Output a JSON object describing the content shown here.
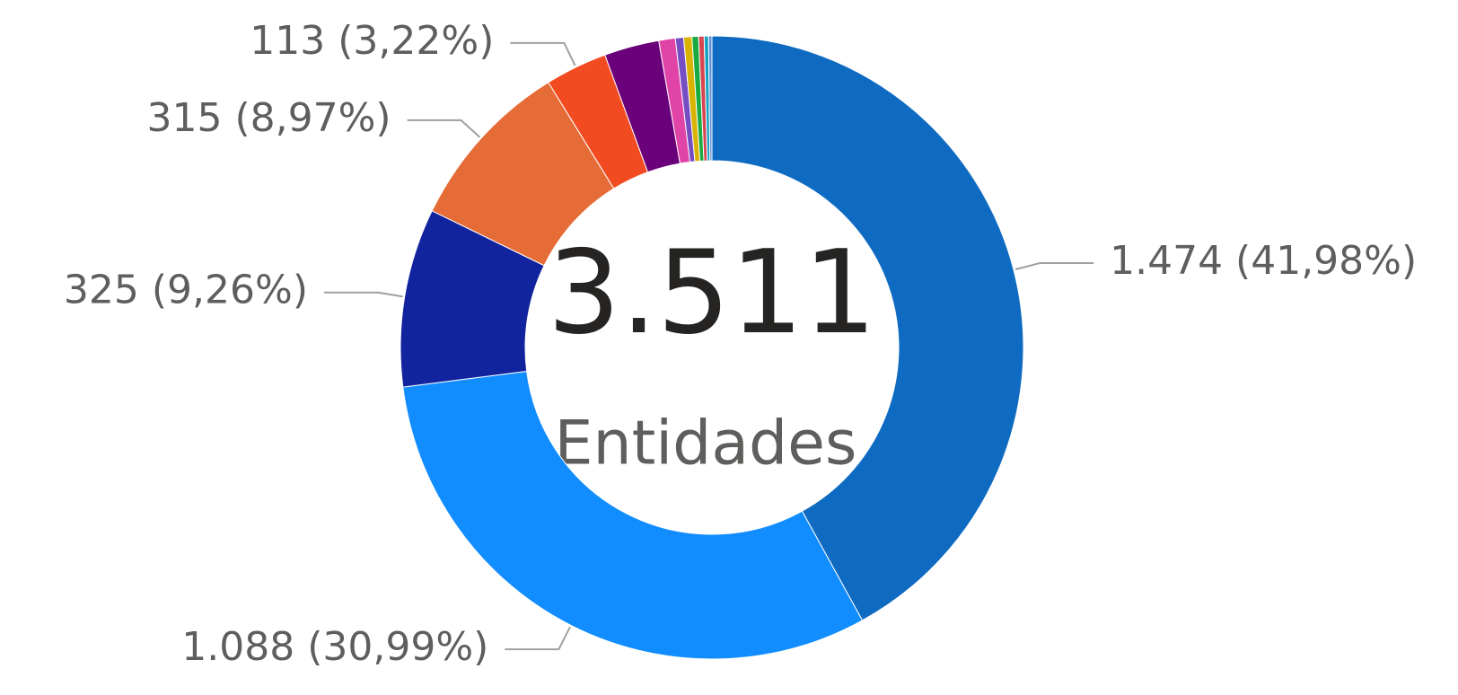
{
  "chart_data": {
    "type": "donut",
    "center_value": "3.511",
    "center_caption": "Entidades",
    "values": [
      1474,
      1088,
      325,
      315,
      113,
      100,
      30,
      15,
      15,
      12,
      10,
      8,
      6
    ],
    "value_labels": [
      "1.474 (41,98%)",
      "1.088 (30,99%)",
      "325 (9,26%)",
      "315 (8,97%)",
      "113 (3,22%)",
      null,
      null,
      null,
      null,
      null,
      null,
      null,
      null
    ],
    "colors": [
      "#0f6bc2",
      "#118dff",
      "#12239e",
      "#e66c37",
      "#f24b21",
      "#6b007b",
      "#e044a7",
      "#744ec2",
      "#d9b300",
      "#1aab40",
      "#d64550",
      "#15a3c4",
      "#5f8fd6"
    ]
  }
}
